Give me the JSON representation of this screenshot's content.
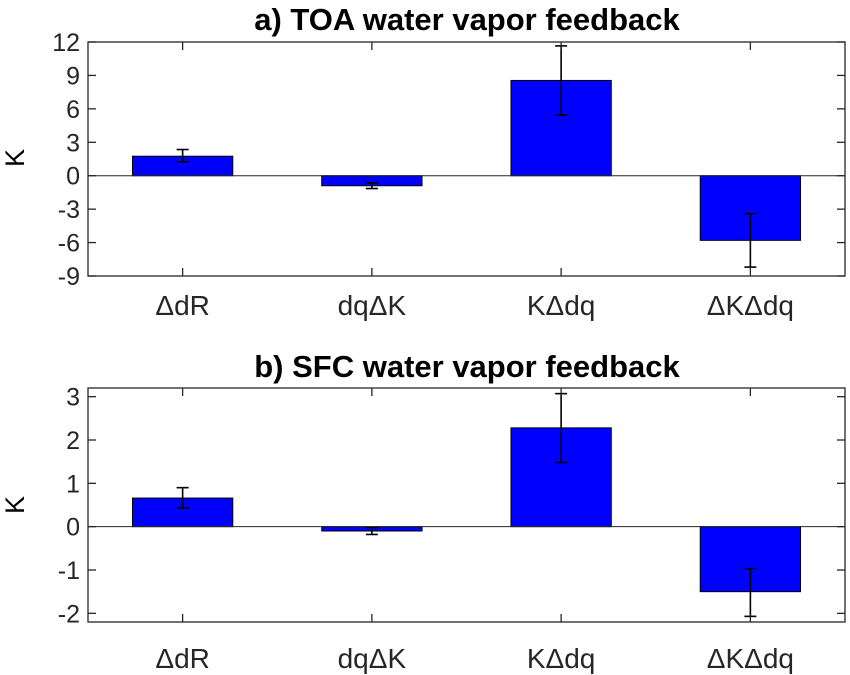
{
  "colors": {
    "bar": "#0000ff",
    "axis": "#262626",
    "errorbar": "#000000"
  },
  "chart_data": [
    {
      "type": "bar",
      "title": "a) TOA water vapor feedback",
      "xlabel": "",
      "ylabel": "K",
      "categories": [
        "ΔdR",
        "dqΔK",
        "KΔdq",
        "ΔKΔdq"
      ],
      "values": [
        1.75,
        -0.9,
        8.55,
        -5.8
      ],
      "error_low": [
        1.25,
        -1.15,
        5.45,
        -8.2
      ],
      "error_high": [
        2.35,
        -0.65,
        11.65,
        -3.4
      ],
      "ylim": [
        -9,
        12
      ],
      "yticks": [
        12,
        9,
        6,
        3,
        0,
        -3,
        -6,
        -9
      ],
      "ytick_labels": [
        "12",
        "9",
        "6",
        "3",
        "0",
        "-3",
        "-6",
        "-9"
      ],
      "grid": false,
      "legend": "none"
    },
    {
      "type": "bar",
      "title": "b) SFC water vapor feedback",
      "xlabel": "",
      "ylabel": "K",
      "categories": [
        "ΔdR",
        "dqΔK",
        "KΔdq",
        "ΔKΔdq"
      ],
      "values": [
        0.66,
        -0.1,
        2.28,
        -1.5
      ],
      "error_low": [
        0.43,
        -0.18,
        1.48,
        -2.07
      ],
      "error_high": [
        0.9,
        -0.02,
        3.07,
        -0.97
      ],
      "ylim": [
        -2.2,
        3.2
      ],
      "yticks": [
        3,
        2,
        1,
        0,
        -1,
        -2
      ],
      "ytick_labels": [
        "3",
        "2",
        "1",
        "0",
        "-1",
        "-2"
      ],
      "grid": false,
      "legend": "none"
    }
  ]
}
